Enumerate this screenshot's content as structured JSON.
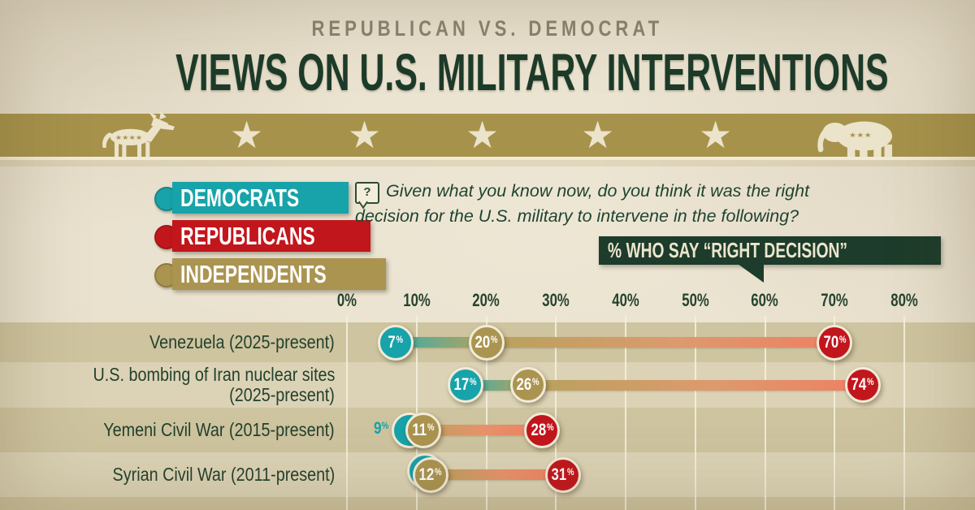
{
  "header": {
    "subtitle": "REPUBLICAN VS. DEMOCRAT",
    "title": "VIEWS ON U.S. MILITARY INTERVENTIONS"
  },
  "banner": {
    "stars_count": 5,
    "donkey_stars": "★★★★",
    "elephant_stars": "★★★"
  },
  "legend": {
    "items": [
      {
        "id": "democrats",
        "label": "DEMOCRATS",
        "color": "#17a3a9"
      },
      {
        "id": "republicans",
        "label": "REPUBLICANS",
        "color": "#c2161d"
      },
      {
        "id": "independents",
        "label": "INDEPENDENTS",
        "color": "#ab9450"
      }
    ]
  },
  "question": {
    "icon": "?",
    "text": "Given what you know now, do you think it was the right decision for the U.S. military to intervene in the following?"
  },
  "callout": {
    "label": "% WHO SAY “RIGHT DECISION”"
  },
  "chart_data": {
    "type": "dot-range",
    "title": "% who say “right decision”",
    "unit": "%",
    "x_axis": {
      "min": 0,
      "max": 80,
      "ticks": [
        "0%",
        "10%",
        "20%",
        "30%",
        "40%",
        "50%",
        "60%",
        "70%",
        "80%"
      ],
      "grid": true
    },
    "series_names": [
      "Democrats",
      "Independents",
      "Republicans"
    ],
    "series_colors": {
      "democrats": "#17a3a9",
      "independents": "#ab9450",
      "republicans": "#c2161d"
    },
    "rows": [
      {
        "label_lines": [
          "Venezuela (2025-present)"
        ],
        "democrats": 7,
        "independents": 20,
        "republicans": 70
      },
      {
        "label_lines": [
          "U.S. bombing of Iran nuclear sites",
          "(2025-present)"
        ],
        "democrats": 17,
        "independents": 26,
        "republicans": 74
      },
      {
        "label_lines": [
          "Yemeni Civil War (2015-present)"
        ],
        "democrats": 9,
        "independents": 11,
        "republicans": 28
      },
      {
        "label_lines": [
          "Syrian Civil War (2011-present)"
        ],
        "democrats": 12,
        "independents": 12,
        "republicans": 31
      }
    ]
  }
}
